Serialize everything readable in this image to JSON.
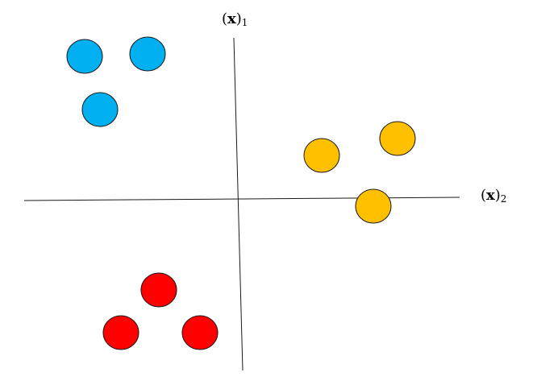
{
  "axes": {
    "vertical": {
      "open": "(",
      "symbol": "x",
      "close": ")",
      "subscript": "1"
    },
    "horizontal": {
      "open": "(",
      "symbol": "x",
      "close": ")",
      "subscript": "2"
    }
  },
  "colors": {
    "blue": "#00b0f0",
    "orange": "#ffc000",
    "red": "#ff0000",
    "stroke": "#1a1a1a"
  },
  "clusters": [
    {
      "color_key": "blue",
      "count": 3
    },
    {
      "color_key": "orange",
      "count": 3
    },
    {
      "color_key": "red",
      "count": 3
    }
  ]
}
